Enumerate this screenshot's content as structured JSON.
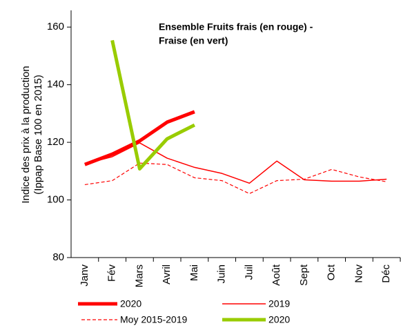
{
  "chart_data": {
    "type": "line",
    "title_lines": [
      "Ensemble Fruits frais (en rouge) -",
      "Fraise (en vert)"
    ],
    "y_label_lines": [
      "Indice des prix à la production",
      "(Ippap Base 100 en 2015)"
    ],
    "categories": [
      "Janv",
      "Fév",
      "Mars",
      "Avril",
      "Mai",
      "Juin",
      "Juil",
      "Août",
      "Sept",
      "Oct",
      "Nov",
      "Déc"
    ],
    "series": [
      {
        "name": "2020",
        "color": "#ff0000",
        "width": 5,
        "dash": "none",
        "values": [
          112.3,
          115.9,
          120.5,
          127,
          130.6,
          null,
          null,
          null,
          null,
          null,
          null,
          null
        ]
      },
      {
        "name": "2019",
        "color": "#ff0000",
        "width": 1.5,
        "dash": "none",
        "values": [
          112.5,
          115,
          119.8,
          114.5,
          111.3,
          109.2,
          105.8,
          113.5,
          107,
          106.5,
          106.5,
          107.2
        ]
      },
      {
        "name": "Moy 2015-2019",
        "color": "#ff0000",
        "width": 1.2,
        "dash": "5,3",
        "values": [
          105.3,
          106.7,
          112.8,
          112.3,
          107.7,
          106.7,
          102.2,
          106.7,
          107.2,
          110.6,
          108,
          106.3
        ]
      },
      {
        "name": "2020",
        "color": "#99cc00",
        "width": 5,
        "dash": "none",
        "values": [
          null,
          155.4,
          110.8,
          121.2,
          126,
          null,
          null,
          null,
          null,
          null,
          null,
          null
        ]
      }
    ],
    "ylim": [
      80,
      165.8
    ],
    "yticks": [
      80,
      100,
      120,
      140,
      160
    ],
    "grid": false
  }
}
